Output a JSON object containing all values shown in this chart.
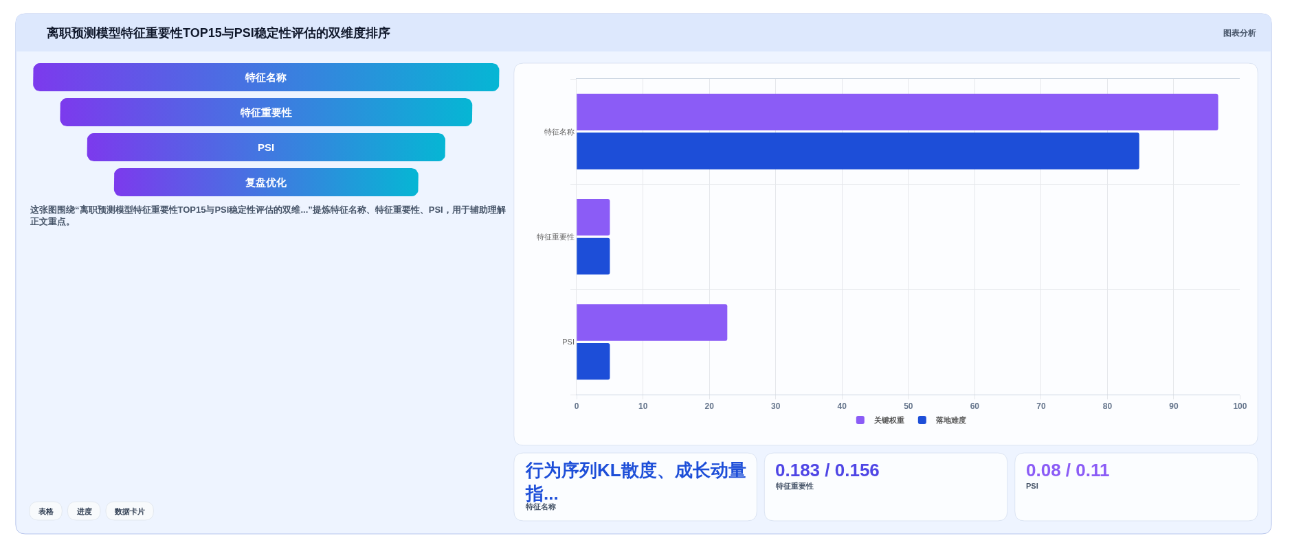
{
  "chart_data": [
    {
      "type": "other",
      "title": "离职预测模型特征重要性TOP15与PSI稳定性评估的双维度排序",
      "categories": [
        "特征名称",
        "特征重要性",
        "PSI",
        "复盘优化"
      ],
      "annotations": [
        "图表分析",
        "这张图围绕“离职预测模型特征重要性TOP15与PSI稳定性评估的双维...”提炼特征名称、特征重要性、PSI，用于辅助理解正文重点。",
        "表格",
        "进度",
        "数据卡片"
      ]
    },
    {
      "type": "bar",
      "orientation": "horizontal",
      "categories": [
        "特征名称",
        "特征重要性",
        "PSI"
      ],
      "series": [
        {
          "name": "关键权重",
          "color": "#8b5cf6",
          "values": [
            96.7,
            5,
            22.7
          ]
        },
        {
          "name": "落地难度",
          "color": "#1d4ed8",
          "values": [
            84.8,
            5,
            5
          ]
        }
      ],
      "xlim": [
        0,
        100
      ],
      "xticks": [
        0,
        10,
        20,
        30,
        40,
        50,
        60,
        70,
        80,
        90,
        100
      ],
      "grid": true,
      "legend": "bottom"
    },
    {
      "type": "other",
      "title": "行为序列KL散度、成长动量指...",
      "subtitle": "特征名称"
    },
    {
      "type": "other",
      "title": "0.183 / 0.156",
      "subtitle": "特征重要性"
    },
    {
      "type": "other",
      "title": "0.08 / 0.11",
      "subtitle": "PSI"
    }
  ]
}
